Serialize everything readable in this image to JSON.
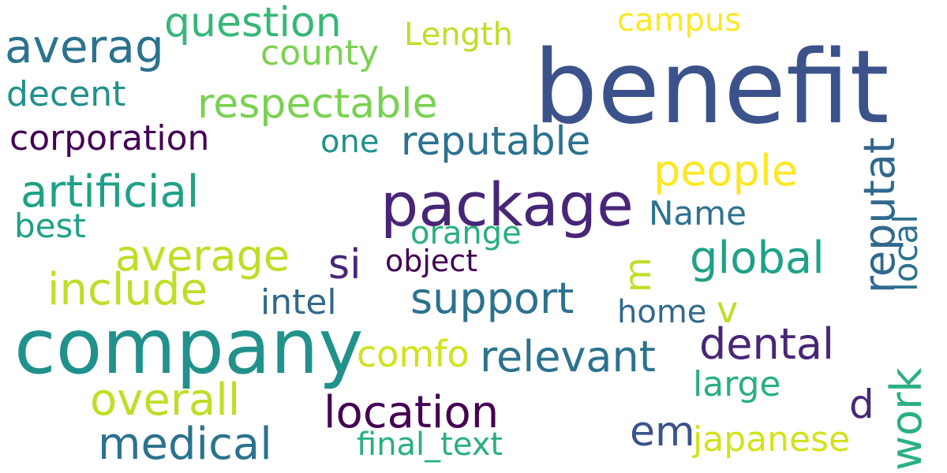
{
  "words": {
    "benefit": "benefit",
    "company": "company",
    "package": "package",
    "question": "question",
    "averag": "averag",
    "campus": "campus",
    "length": "Length",
    "county": "county",
    "respectable": "respectable",
    "decent": "decent",
    "corporation": "corporation",
    "one": "one",
    "reputable": "reputable",
    "people": "people",
    "artificial": "artificial",
    "name": "Name",
    "best": "best",
    "orange": "orange",
    "average": "average",
    "si": "si",
    "object": "object",
    "global": "global",
    "include": "include",
    "support": "support",
    "intel": "intel",
    "v": "v",
    "home": "home",
    "dental": "dental",
    "relevant": "relevant",
    "comfo": "comfo",
    "large": "large",
    "overall": "overall",
    "d": "d",
    "location": "location",
    "em": "em",
    "medical": "medical",
    "japanese": "japanese",
    "final_text": "final_text",
    "reputat": "reputat",
    "local": "local",
    "work": "work",
    "m": "m"
  },
  "colors": {
    "deep": "#3b528b",
    "purple": "#482677",
    "dark": "#440154",
    "teal": "#21918c",
    "teal_blue": "#2c728e",
    "blue": "#31688e",
    "green": "#35b779",
    "green2": "#1fa187",
    "lime": "#7ad151",
    "yellow": "#bddf26",
    "yellow2": "#fde725",
    "yellow3": "#d2e21b",
    "sea": "#29af7f"
  }
}
